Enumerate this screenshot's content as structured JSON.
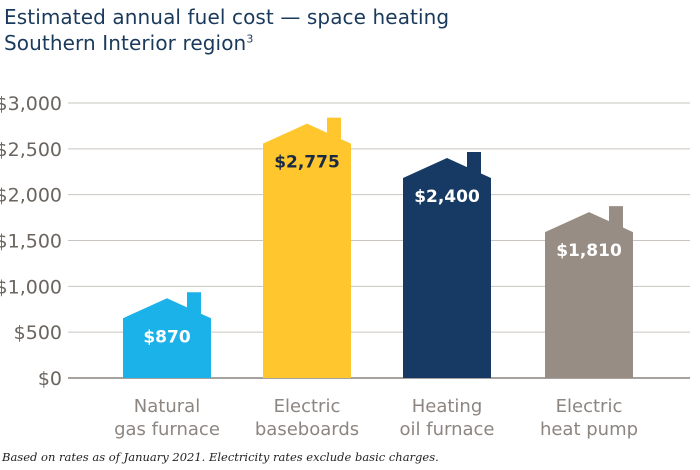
{
  "title": "Estimated annual fuel cost — space heating",
  "subtitle": "Southern Interior region",
  "subtitle_note": "3",
  "footnote": "Based on rates as of January 2021. Electricity rates exclude basic charges.",
  "colors": {
    "title": "#1a3a5c",
    "axis_text": "#6b6560",
    "axis_line": "#8a847e",
    "grid": "#c9c4bf",
    "category_text": "#8c8580",
    "natural_gas": "#1ab2e8",
    "electric_baseboards": "#ffc62e",
    "heating_oil": "#163a63",
    "heat_pump": "#978d84"
  },
  "chart_data": {
    "type": "bar",
    "bar_shape": "house-icon",
    "title": "Estimated annual fuel cost — space heating",
    "subtitle": "Southern Interior region",
    "xlabel": "",
    "ylabel": "",
    "ylim": [
      0,
      3000
    ],
    "yticks": [
      0,
      500,
      1000,
      1500,
      2000,
      2500,
      3000
    ],
    "ytick_labels": [
      "$0",
      "$500",
      "$1,000",
      "$1,500",
      "$2,000",
      "$2,500",
      "$3,000"
    ],
    "grid": true,
    "categories": [
      [
        "Natural",
        "gas furnace"
      ],
      [
        "Electric",
        "baseboards"
      ],
      [
        "Heating",
        "oil furnace"
      ],
      [
        "Electric",
        "heat pump"
      ]
    ],
    "values": [
      870,
      2775,
      2400,
      1810
    ],
    "value_labels": [
      "$870",
      "$2,775",
      "$2,400",
      "$1,810"
    ],
    "bar_colors": [
      "#1ab2e8",
      "#ffc62e",
      "#163a63",
      "#978d84"
    ],
    "value_label_colors": [
      "#ffffff",
      "#1a2a44",
      "#ffffff",
      "#ffffff"
    ]
  }
}
